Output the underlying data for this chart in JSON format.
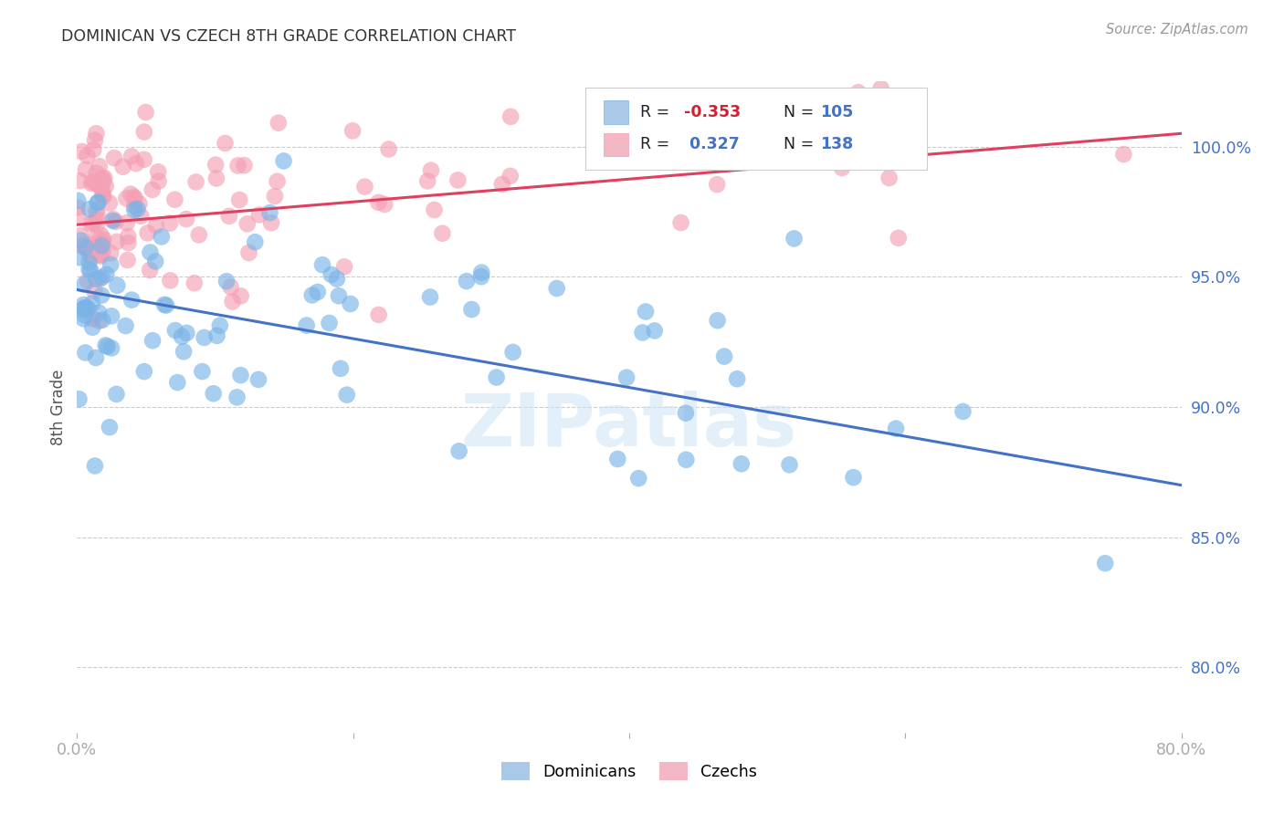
{
  "title": "DOMINICAN VS CZECH 8TH GRADE CORRELATION CHART",
  "source": "Source: ZipAtlas.com",
  "ylabel": "8th Grade",
  "ytick_labels": [
    "100.0%",
    "95.0%",
    "90.0%",
    "85.0%",
    "80.0%"
  ],
  "ytick_values": [
    1.0,
    0.95,
    0.9,
    0.85,
    0.8
  ],
  "xlim": [
    0.0,
    0.8
  ],
  "ylim": [
    0.775,
    1.025
  ],
  "dominicans_color": "#7ab4e8",
  "czechs_color": "#f4a0b5",
  "dominicans_R": -0.353,
  "dominicans_N": 105,
  "czechs_R": 0.327,
  "czechs_N": 138,
  "background_color": "#ffffff",
  "grid_color": "#cccccc",
  "title_color": "#333333",
  "axis_label_color": "#4472c4",
  "watermark": "ZIPatlas",
  "dom_line_x0": 0.0,
  "dom_line_x1": 0.8,
  "dom_line_y0": 0.945,
  "dom_line_y1": 0.87,
  "cze_line_x0": 0.0,
  "cze_line_x1": 0.8,
  "cze_line_y0": 0.97,
  "cze_line_y1": 1.005
}
